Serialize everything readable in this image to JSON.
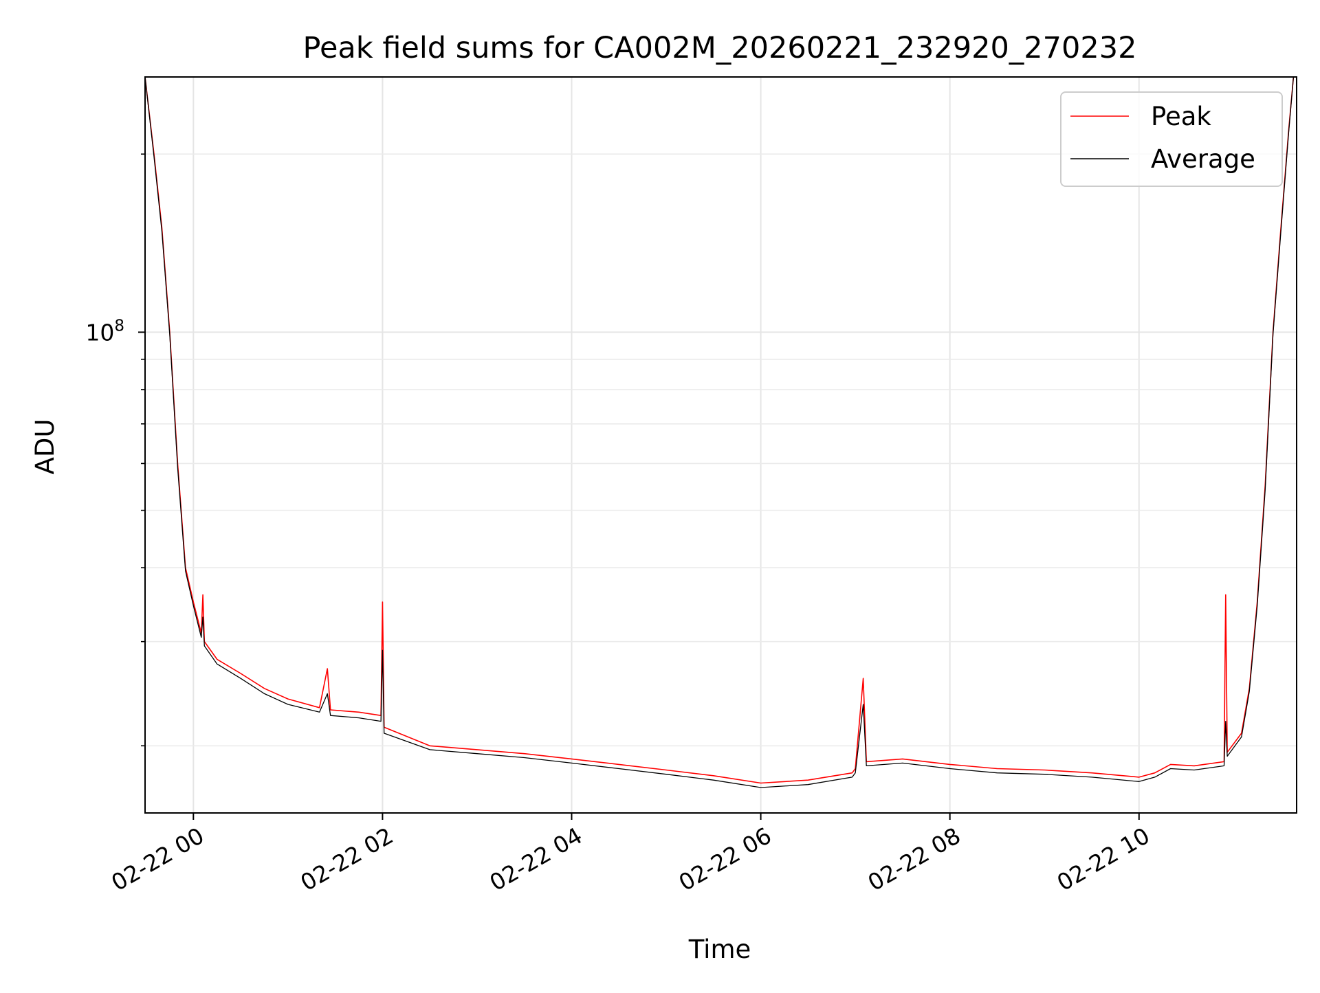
{
  "chart_data": {
    "type": "line",
    "title": "Peak field sums for CA002M_20260221_232920_270232",
    "xlabel": "Time",
    "ylabel": "ADU",
    "x_axis": "time",
    "x_range": [
      "2026-02-21T23:29:20",
      "2026-02-22T11:40:00"
    ],
    "xtick_labels": [
      "02-22 00",
      "02-22 02",
      "02-22 04",
      "02-22 06",
      "02-22 08",
      "02-22 10"
    ],
    "xtick_values": [
      "2026-02-22T00:00",
      "2026-02-22T02:00",
      "2026-02-22T04:00",
      "2026-02-22T06:00",
      "2026-02-22T08:00",
      "2026-02-22T10:00"
    ],
    "y_scale": "log",
    "ylim": [
      15400000,
      270000000
    ],
    "major_ytick_labels": [
      {
        "value": 100000000,
        "base": "10",
        "exp": "8"
      }
    ],
    "minor_yticks": [
      20000000,
      30000000,
      40000000,
      50000000,
      60000000,
      70000000,
      80000000,
      90000000,
      200000000
    ],
    "grid": true,
    "legend_position": "top-right",
    "series": [
      {
        "name": "Peak",
        "color": "#ff0000",
        "points": [
          [
            "2026-02-21T23:29:20",
            270000000
          ],
          [
            "2026-02-21T23:35:00",
            200000000
          ],
          [
            "2026-02-21T23:40:00",
            150000000
          ],
          [
            "2026-02-21T23:45:00",
            100000000
          ],
          [
            "2026-02-21T23:50:00",
            60000000
          ],
          [
            "2026-02-21T23:55:00",
            40000000
          ],
          [
            "2026-02-22T00:00:00",
            35000000
          ],
          [
            "2026-02-22T00:05:00",
            31000000
          ],
          [
            "2026-02-22T00:06:00",
            36000000
          ],
          [
            "2026-02-22T00:07:00",
            30000000
          ],
          [
            "2026-02-22T00:15:00",
            28000000
          ],
          [
            "2026-02-22T00:30:00",
            26500000
          ],
          [
            "2026-02-22T00:45:00",
            25000000
          ],
          [
            "2026-02-22T01:00:00",
            24000000
          ],
          [
            "2026-02-22T01:20:00",
            23200000
          ],
          [
            "2026-02-22T01:25:00",
            27000000
          ],
          [
            "2026-02-22T01:27:00",
            23000000
          ],
          [
            "2026-02-22T01:45:00",
            22800000
          ],
          [
            "2026-02-22T01:59:00",
            22500000
          ],
          [
            "2026-02-22T02:00:00",
            35000000
          ],
          [
            "2026-02-22T02:01:00",
            21500000
          ],
          [
            "2026-02-22T02:30:00",
            20000000
          ],
          [
            "2026-02-22T03:00:00",
            19700000
          ],
          [
            "2026-02-22T03:30:00",
            19400000
          ],
          [
            "2026-02-22T04:00:00",
            19000000
          ],
          [
            "2026-02-22T04:30:00",
            18600000
          ],
          [
            "2026-02-22T05:00:00",
            18200000
          ],
          [
            "2026-02-22T05:30:00",
            17800000
          ],
          [
            "2026-02-22T06:00:00",
            17300000
          ],
          [
            "2026-02-22T06:30:00",
            17500000
          ],
          [
            "2026-02-22T06:58:00",
            18000000
          ],
          [
            "2026-02-22T07:00:00",
            18300000
          ],
          [
            "2026-02-22T07:05:00",
            26000000
          ],
          [
            "2026-02-22T07:07:00",
            18800000
          ],
          [
            "2026-02-22T07:30:00",
            19000000
          ],
          [
            "2026-02-22T08:00:00",
            18600000
          ],
          [
            "2026-02-22T08:30:00",
            18300000
          ],
          [
            "2026-02-22T09:00:00",
            18200000
          ],
          [
            "2026-02-22T09:30:00",
            18000000
          ],
          [
            "2026-02-22T10:00:00",
            17700000
          ],
          [
            "2026-02-22T10:10:00",
            18000000
          ],
          [
            "2026-02-22T10:20:00",
            18600000
          ],
          [
            "2026-02-22T10:35:00",
            18500000
          ],
          [
            "2026-02-22T10:54:00",
            18800000
          ],
          [
            "2026-02-22T10:55:00",
            36000000
          ],
          [
            "2026-02-22T10:56:00",
            19500000
          ],
          [
            "2026-02-22T11:05:00",
            21000000
          ],
          [
            "2026-02-22T11:10:00",
            25000000
          ],
          [
            "2026-02-22T11:15:00",
            35000000
          ],
          [
            "2026-02-22T11:20:00",
            55000000
          ],
          [
            "2026-02-22T11:25:00",
            100000000
          ],
          [
            "2026-02-22T11:30:00",
            150000000
          ],
          [
            "2026-02-22T11:35:00",
            220000000
          ],
          [
            "2026-02-22T11:38:00",
            270000000
          ]
        ]
      },
      {
        "name": "Average",
        "color": "#000000",
        "points": [
          [
            "2026-02-21T23:29:20",
            270000000
          ],
          [
            "2026-02-21T23:35:00",
            198000000
          ],
          [
            "2026-02-21T23:40:00",
            148000000
          ],
          [
            "2026-02-21T23:45:00",
            99000000
          ],
          [
            "2026-02-21T23:50:00",
            59000000
          ],
          [
            "2026-02-21T23:55:00",
            39500000
          ],
          [
            "2026-02-22T00:00:00",
            34500000
          ],
          [
            "2026-02-22T00:05:00",
            30500000
          ],
          [
            "2026-02-22T00:06:00",
            33000000
          ],
          [
            "2026-02-22T00:07:00",
            29500000
          ],
          [
            "2026-02-22T00:15:00",
            27500000
          ],
          [
            "2026-02-22T00:30:00",
            26000000
          ],
          [
            "2026-02-22T00:45:00",
            24500000
          ],
          [
            "2026-02-22T01:00:00",
            23500000
          ],
          [
            "2026-02-22T01:20:00",
            22800000
          ],
          [
            "2026-02-22T01:25:00",
            24500000
          ],
          [
            "2026-02-22T01:27:00",
            22500000
          ],
          [
            "2026-02-22T01:45:00",
            22300000
          ],
          [
            "2026-02-22T01:59:00",
            22000000
          ],
          [
            "2026-02-22T02:00:00",
            29000000
          ],
          [
            "2026-02-22T02:01:00",
            21000000
          ],
          [
            "2026-02-22T02:30:00",
            19700000
          ],
          [
            "2026-02-22T03:00:00",
            19400000
          ],
          [
            "2026-02-22T03:30:00",
            19100000
          ],
          [
            "2026-02-22T04:00:00",
            18700000
          ],
          [
            "2026-02-22T04:30:00",
            18300000
          ],
          [
            "2026-02-22T05:00:00",
            17900000
          ],
          [
            "2026-02-22T05:30:00",
            17500000
          ],
          [
            "2026-02-22T06:00:00",
            17000000
          ],
          [
            "2026-02-22T06:30:00",
            17200000
          ],
          [
            "2026-02-22T06:58:00",
            17700000
          ],
          [
            "2026-02-22T07:00:00",
            18000000
          ],
          [
            "2026-02-22T07:05:00",
            23500000
          ],
          [
            "2026-02-22T07:07:00",
            18500000
          ],
          [
            "2026-02-22T07:30:00",
            18700000
          ],
          [
            "2026-02-22T08:00:00",
            18300000
          ],
          [
            "2026-02-22T08:30:00",
            18000000
          ],
          [
            "2026-02-22T09:00:00",
            17900000
          ],
          [
            "2026-02-22T09:30:00",
            17700000
          ],
          [
            "2026-02-22T10:00:00",
            17400000
          ],
          [
            "2026-02-22T10:10:00",
            17700000
          ],
          [
            "2026-02-22T10:20:00",
            18300000
          ],
          [
            "2026-02-22T10:35:00",
            18200000
          ],
          [
            "2026-02-22T10:54:00",
            18500000
          ],
          [
            "2026-02-22T10:55:00",
            22000000
          ],
          [
            "2026-02-22T10:56:00",
            19200000
          ],
          [
            "2026-02-22T11:05:00",
            20700000
          ],
          [
            "2026-02-22T11:10:00",
            24700000
          ],
          [
            "2026-02-22T11:15:00",
            34500000
          ],
          [
            "2026-02-22T11:20:00",
            54000000
          ],
          [
            "2026-02-22T11:25:00",
            99000000
          ],
          [
            "2026-02-22T11:30:00",
            148000000
          ],
          [
            "2026-02-22T11:35:00",
            218000000
          ],
          [
            "2026-02-22T11:38:00",
            270000000
          ]
        ]
      }
    ]
  }
}
